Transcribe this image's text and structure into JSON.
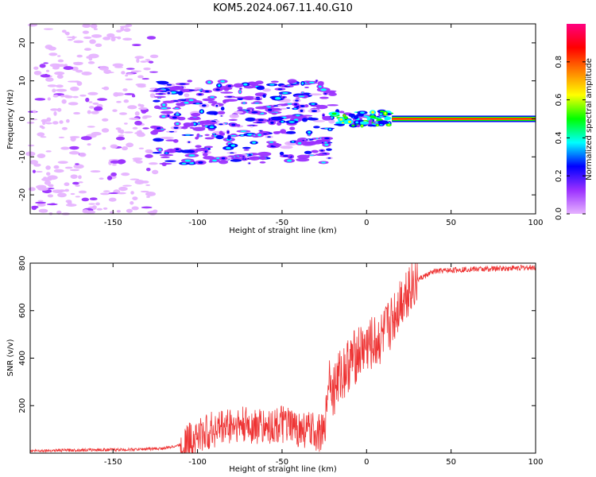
{
  "figure": {
    "title": "KOM5.2024.067.11.40.G10"
  },
  "chart_data": [
    {
      "type": "heatmap",
      "xlabel": "Height of straight line (km)",
      "ylabel": "Frequency (Hz)",
      "xlim": [
        -199,
        100
      ],
      "ylim": [
        -25,
        25
      ],
      "x_ticks": [
        -150,
        -100,
        -50,
        0,
        50,
        100
      ],
      "y_ticks": [
        -20,
        -10,
        0,
        10,
        20
      ],
      "grid": false,
      "colorbar": {
        "label": "Normalized spectral amplitude",
        "range": [
          0,
          1
        ],
        "ticks": [
          0.0,
          0.2,
          0.4,
          0.6,
          0.8
        ],
        "colormap": "gist_rainbow",
        "colors": [
          "#e6b3ff",
          "#9b30ff",
          "#0000ff",
          "#00ffff",
          "#00ff00",
          "#ffff00",
          "#ff8000",
          "#ff0000",
          "#ff0080"
        ]
      },
      "regions": [
        {
          "x_range": [
            -199,
            -125
          ],
          "freq_range": [
            -25,
            25
          ],
          "amplitude": 0.05,
          "description_level": "noise"
        },
        {
          "x_range": [
            -125,
            -20
          ],
          "freq_range": [
            -12,
            10
          ],
          "amplitude": 0.15
        },
        {
          "x_range": [
            -20,
            15
          ],
          "freq_range": [
            -2,
            2
          ],
          "amplitude": 0.35
        },
        {
          "x_range": [
            15,
            100
          ],
          "freq_range": [
            -0.8,
            0.8
          ],
          "amplitude": 0.95
        }
      ]
    },
    {
      "type": "line",
      "xlabel": "Height of straight line (km)",
      "ylabel": "SNR (v/v)",
      "xlim": [
        -199,
        100
      ],
      "ylim": [
        0,
        800
      ],
      "x_ticks": [
        -150,
        -100,
        -50,
        0,
        50,
        100
      ],
      "y_ticks": [
        200,
        400,
        600,
        800
      ],
      "grid": false,
      "series": [
        {
          "color": "#ee3333",
          "x": [
            -199,
            -180,
            -160,
            -140,
            -120,
            -110,
            -100,
            -90,
            -80,
            -70,
            -60,
            -50,
            -40,
            -30,
            -25,
            -22,
            -20,
            -18,
            -15,
            -10,
            -5,
            0,
            5,
            10,
            15,
            20,
            25,
            30,
            40,
            50,
            60,
            70,
            80,
            90,
            100
          ],
          "y": [
            10,
            12,
            14,
            15,
            20,
            35,
            70,
            100,
            120,
            115,
            110,
            120,
            100,
            90,
            80,
            350,
            250,
            300,
            330,
            380,
            420,
            450,
            460,
            490,
            560,
            640,
            700,
            730,
            765,
            770,
            775,
            775,
            778,
            780,
            782
          ]
        }
      ]
    }
  ]
}
